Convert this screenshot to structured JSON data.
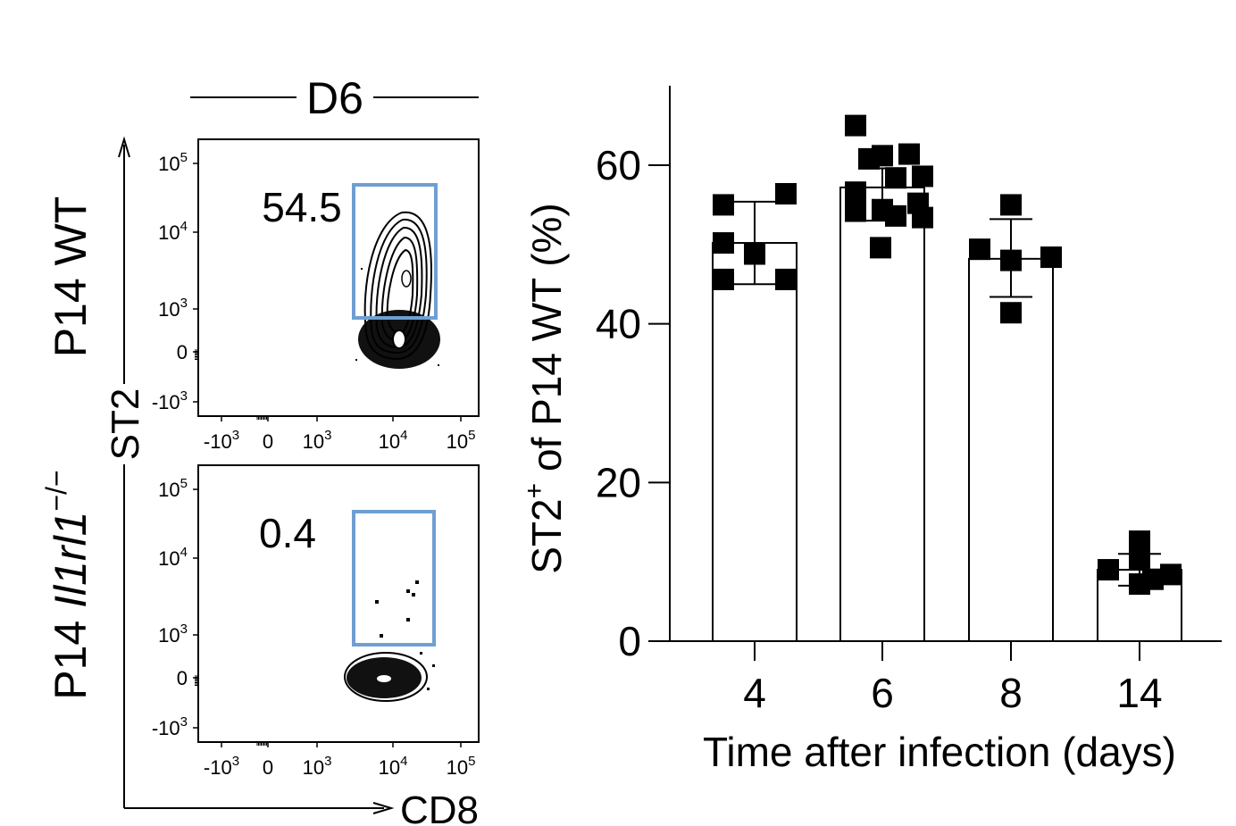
{
  "flow": {
    "condition": "D6",
    "y_axis_label": "ST2",
    "x_axis_label": "CD8",
    "row_label_wt": "P14 WT",
    "row_label_ko_prefix": "P14 ",
    "row_label_ko_gene": "Il1rl1",
    "row_label_ko_sup": "−/−",
    "tick_base": "10",
    "tick_zero": "0",
    "tick_neg": "-10",
    "tick_exp_3": "3",
    "tick_exp_4": "4",
    "tick_exp_5": "5",
    "gate_color": "#6f9fd2",
    "panels": [
      {
        "name": "P14 WT",
        "gate_percent": "54.5"
      },
      {
        "name": "P14 Il1rl1-/-",
        "gate_percent": "0.4"
      }
    ]
  },
  "chart_data": {
    "type": "bar",
    "categories": [
      "4",
      "6",
      "8",
      "14"
    ],
    "values": [
      50.2,
      57.2,
      48.2,
      9.0
    ],
    "error_low": [
      45.0,
      53.0,
      43.4,
      7.0
    ],
    "error_high": [
      55.4,
      59.6,
      53.2,
      11.0
    ],
    "points": [
      [
        55.0,
        56.4,
        50.2,
        48.8,
        45.6,
        45.6
      ],
      [
        65.0,
        61.4,
        61.2,
        60.8,
        58.6,
        58.4,
        56.6,
        55.2,
        54.4,
        54.2,
        53.6,
        53.4,
        49.6
      ],
      [
        55.0,
        49.4,
        48.4,
        48.0,
        41.4
      ],
      [
        12.6,
        10.4,
        9.0,
        8.4,
        7.8,
        7.2
      ]
    ],
    "xlabel": "Time after infection (days)",
    "ylabel_main": "ST2",
    "ylabel_sup": "+",
    "ylabel_rest": " of P14 WT (%)",
    "ylim": [
      0,
      70
    ],
    "yticks": [
      0,
      20,
      40,
      60
    ]
  }
}
